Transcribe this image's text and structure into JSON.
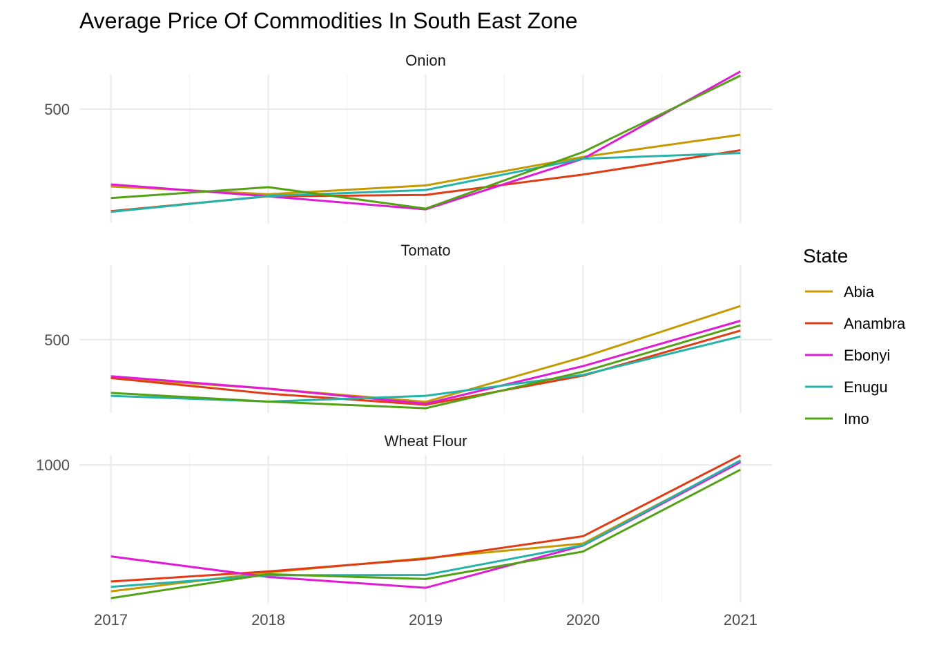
{
  "chart_data": {
    "type": "line",
    "title": "Average Price Of Commodities In South East Zone",
    "xlabel": "",
    "ylabel": "",
    "x": [
      2017,
      2018,
      2019,
      2020,
      2021
    ],
    "x_tick_labels": [
      "2017",
      "2018",
      "2019",
      "2020",
      "2021"
    ],
    "xlim": [
      2016.8,
      2021.2
    ],
    "grid": true,
    "legend": {
      "title": "State",
      "placement": "right",
      "entries": [
        {
          "name": "Abia",
          "color": "#c49a00"
        },
        {
          "name": "Anambra",
          "color": "#e13b15"
        },
        {
          "name": "Ebonyi",
          "color": "#e11ad6"
        },
        {
          "name": "Enugu",
          "color": "#24b3a8"
        },
        {
          "name": "Imo",
          "color": "#53a115"
        }
      ]
    },
    "panels": [
      {
        "label": "Onion",
        "ylim": [
          176,
          598
        ],
        "y_ticks": [
          500
        ],
        "y_tick_labels": [
          "500"
        ],
        "series": [
          {
            "name": "Abia",
            "values": [
              280,
              258,
              283,
              364,
              427
            ]
          },
          {
            "name": "Anambra",
            "values": [
              210,
              252,
              256,
              314,
              383
            ]
          },
          {
            "name": "Ebonyi",
            "values": [
              286,
              252,
              215,
              359,
              607
            ]
          },
          {
            "name": "Enugu",
            "values": [
              208,
              253,
              270,
              359,
              375
            ]
          },
          {
            "name": "Imo",
            "values": [
              247,
              278,
              217,
              378,
              595
            ]
          }
        ]
      },
      {
        "label": "Tomato",
        "ylim": [
          223,
          781
        ],
        "y_ticks": [
          500
        ],
        "y_tick_labels": [
          "500"
        ],
        "series": [
          {
            "name": "Abia",
            "values": [
              355,
              315,
              265,
              434,
              627
            ]
          },
          {
            "name": "Anambra",
            "values": [
              355,
              296,
              254,
              364,
              534
            ]
          },
          {
            "name": "Ebonyi",
            "values": [
              362,
              315,
              258,
              400,
              571
            ]
          },
          {
            "name": "Enugu",
            "values": [
              288,
              266,
              288,
              367,
              512
            ]
          },
          {
            "name": "Imo",
            "values": [
              299,
              266,
              241,
              379,
              554
            ]
          }
        ]
      },
      {
        "label": "Wheat Flour",
        "ylim": [
          452,
          1039
        ],
        "y_ticks": [
          1000
        ],
        "y_tick_labels": [
          "1000"
        ],
        "series": [
          {
            "name": "Abia",
            "values": [
              498,
              573,
              630,
              688,
              1015
            ]
          },
          {
            "name": "Anambra",
            "values": [
              537,
              577,
              627,
              717,
              1038
            ]
          },
          {
            "name": "Ebonyi",
            "values": [
              637,
              555,
              512,
              680,
              1011
            ]
          },
          {
            "name": "Enugu",
            "values": [
              516,
              562,
              563,
              681,
              1018
            ]
          },
          {
            "name": "Imo",
            "values": [
              471,
              566,
              547,
              656,
              981
            ]
          }
        ]
      }
    ]
  }
}
